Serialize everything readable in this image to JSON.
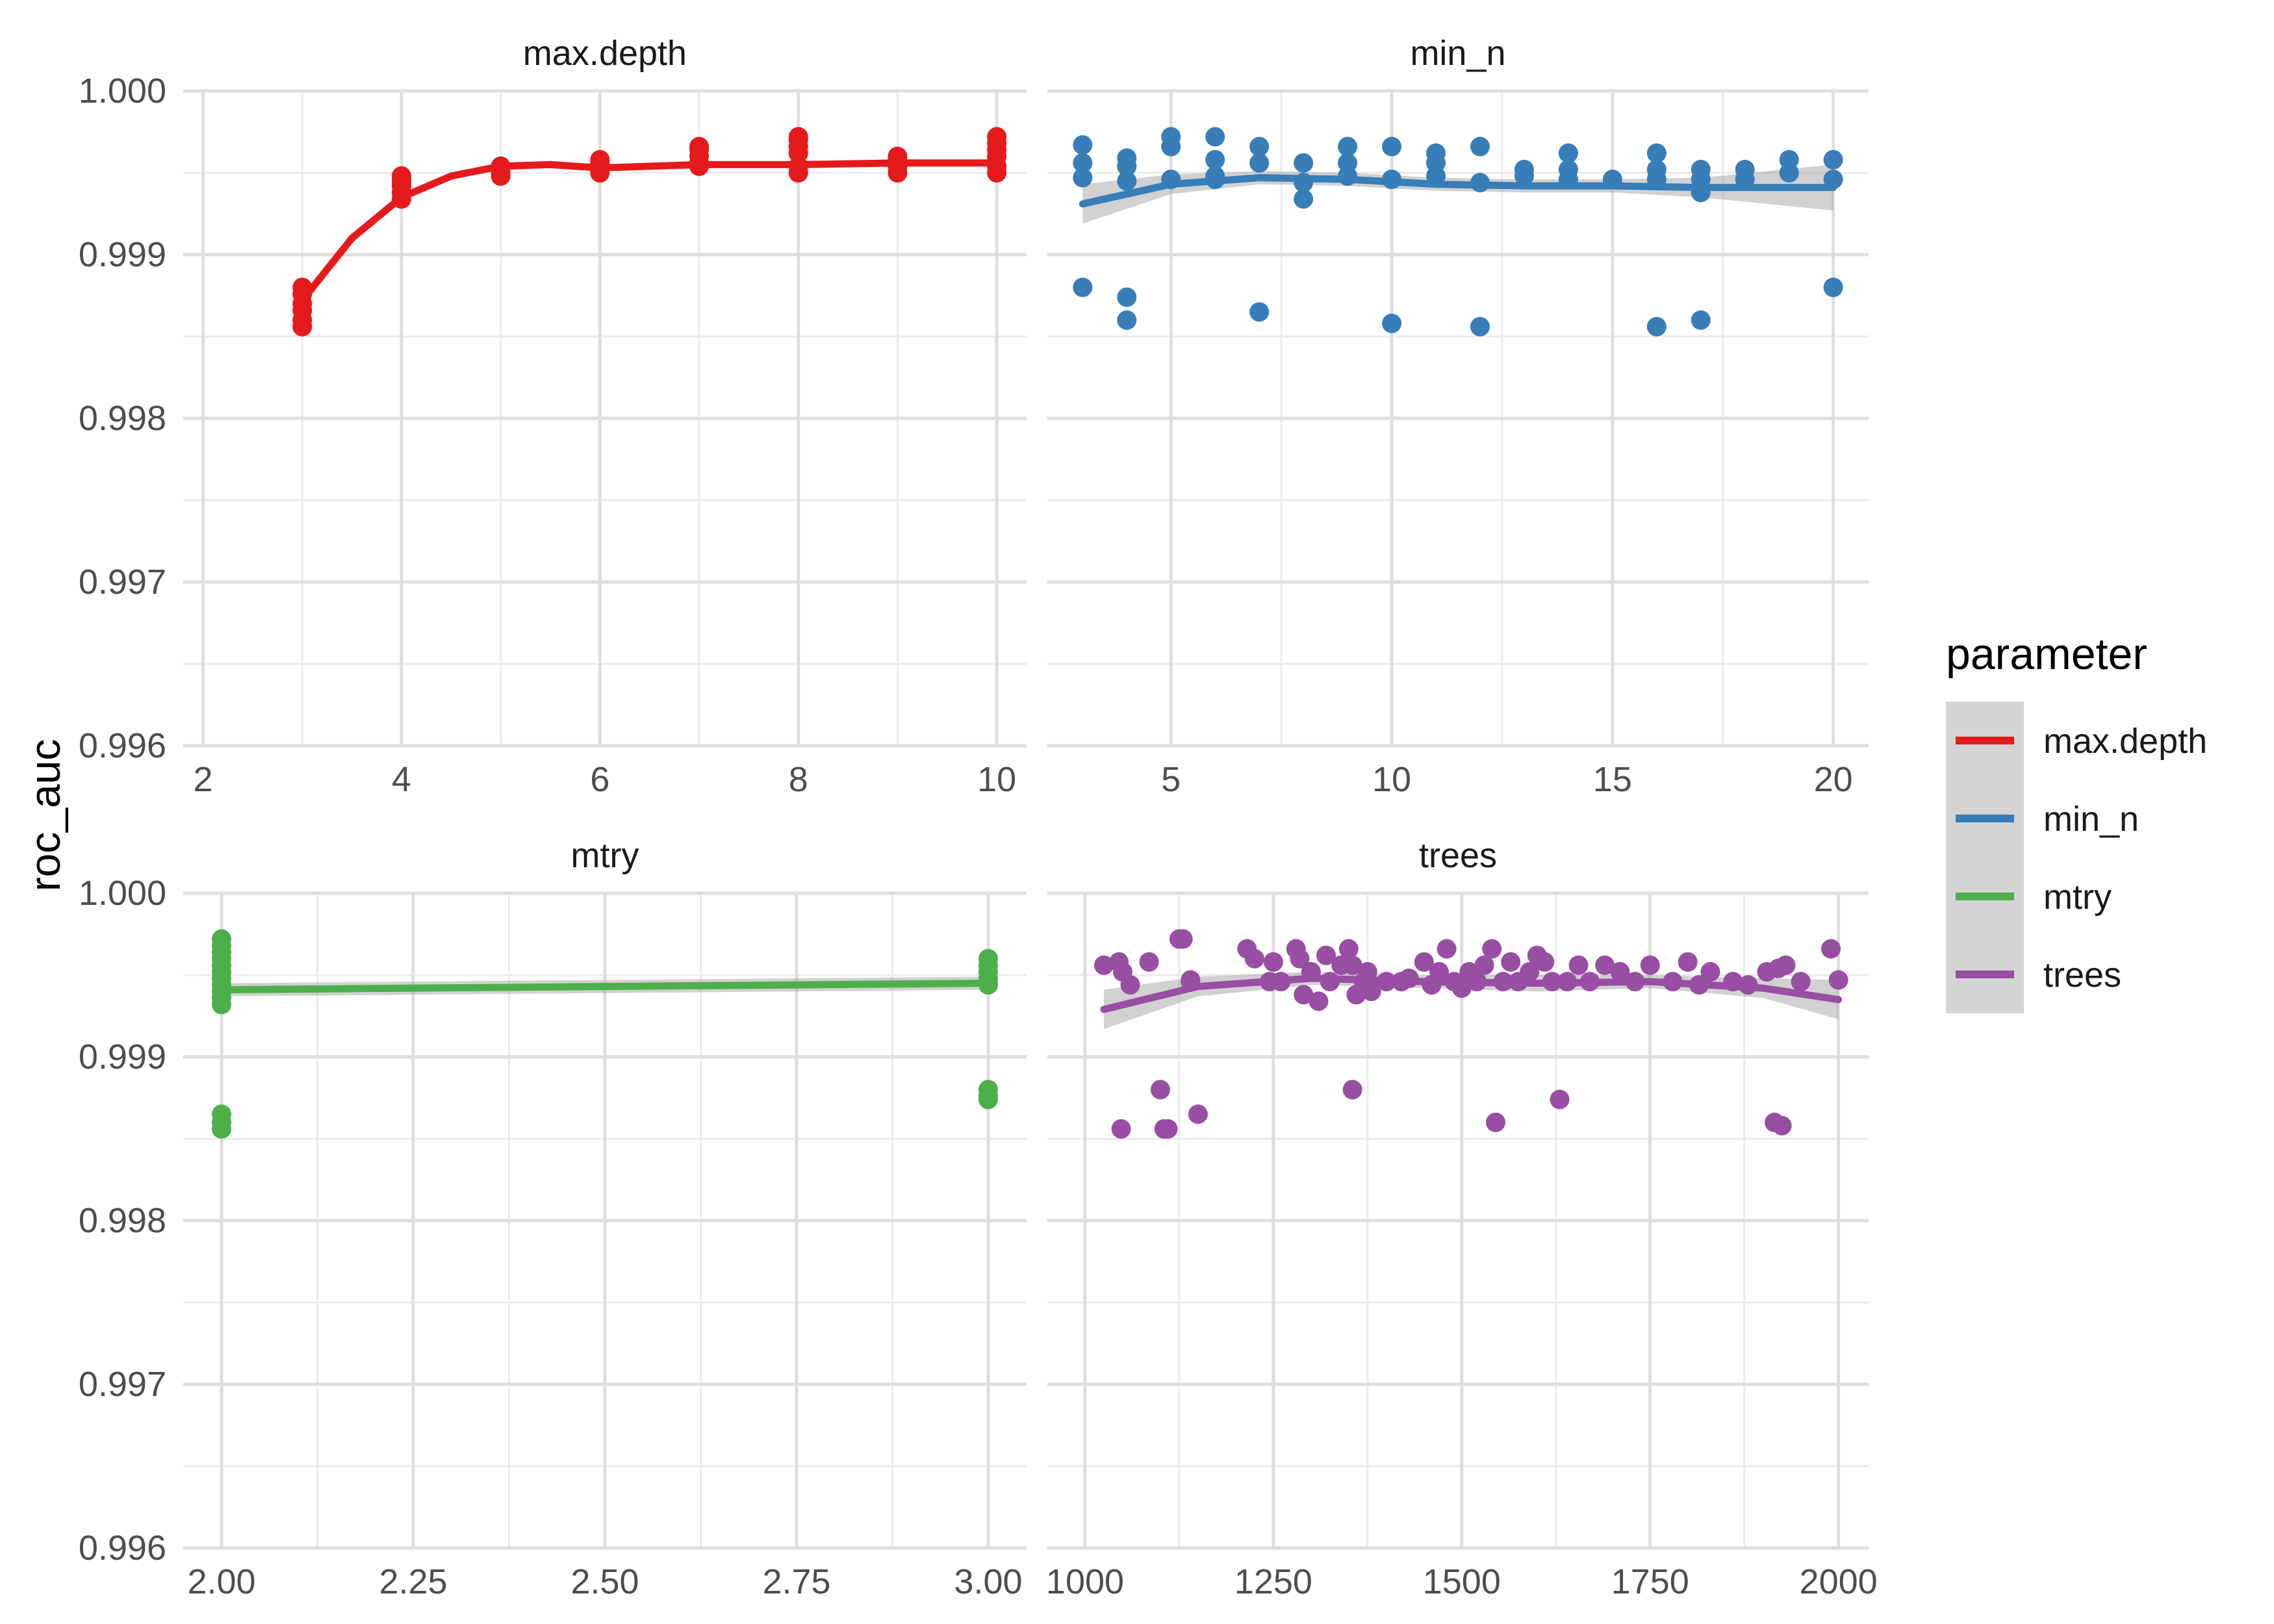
{
  "chart_data": {
    "type": "scatter",
    "ylabel": "roc_auc",
    "ylim": [
      0.996,
      1.0
    ],
    "yticks": [
      "0.996",
      "0.997",
      "0.998",
      "0.999",
      "1.000"
    ],
    "legend": {
      "title": "parameter",
      "position": "right",
      "entries": [
        {
          "name": "max.depth",
          "color": "#E41A1C"
        },
        {
          "name": "min_n",
          "color": "#377EB8"
        },
        {
          "name": "mtry",
          "color": "#4DAF4A"
        },
        {
          "name": "trees",
          "color": "#984EA3"
        }
      ]
    },
    "smoother": "loess with grey confidence band",
    "panels": [
      {
        "title": "max.depth",
        "color": "#E41A1C",
        "xlim": [
          1.8,
          10.3
        ],
        "xticks": [
          "2",
          "4",
          "6",
          "8",
          "10"
        ],
        "xtick_values": [
          2,
          4,
          6,
          8,
          10
        ],
        "x": [
          3,
          3,
          3,
          3,
          3,
          3,
          4,
          4,
          4,
          4,
          4,
          4,
          5,
          5,
          5,
          5,
          6,
          6,
          6,
          6,
          6,
          7,
          7,
          7,
          7,
          7,
          8,
          8,
          8,
          8,
          8,
          8,
          9,
          9,
          9,
          9,
          10,
          10,
          10,
          10,
          10,
          10
        ],
        "y": [
          0.99856,
          0.9986,
          0.99866,
          0.9987,
          0.99876,
          0.9988,
          0.99934,
          0.99938,
          0.99942,
          0.99944,
          0.99946,
          0.99948,
          0.99948,
          0.9995,
          0.99952,
          0.99954,
          0.9995,
          0.99952,
          0.99954,
          0.99956,
          0.99958,
          0.99954,
          0.99956,
          0.9996,
          0.99964,
          0.99966,
          0.9995,
          0.99954,
          0.99962,
          0.99966,
          0.9997,
          0.99972,
          0.9995,
          0.99954,
          0.99958,
          0.9996,
          0.9995,
          0.99954,
          0.9996,
          0.99964,
          0.99968,
          0.99972
        ],
        "smooth_x": [
          3,
          3.5,
          4,
          4.5,
          5,
          5.5,
          6,
          7,
          8,
          9,
          10
        ],
        "smooth_y": [
          0.99872,
          0.9991,
          0.99935,
          0.99948,
          0.99954,
          0.99955,
          0.99953,
          0.99955,
          0.99955,
          0.99956,
          0.99956
        ]
      },
      {
        "title": "min_n",
        "color": "#377EB8",
        "xlim": [
          2.2,
          20.8
        ],
        "xticks": [
          "5",
          "10",
          "15",
          "20"
        ],
        "xtick_values": [
          5,
          10,
          15,
          20
        ],
        "x": [
          3,
          3,
          3,
          3,
          4,
          4,
          4,
          4,
          4,
          5,
          5,
          5,
          6,
          6,
          6,
          6,
          7,
          7,
          7,
          8,
          8,
          8,
          9,
          9,
          9,
          10,
          10,
          10,
          11,
          11,
          11,
          12,
          12,
          12,
          13,
          13,
          14,
          14,
          14,
          15,
          16,
          16,
          16,
          16,
          17,
          17,
          17,
          17,
          18,
          18,
          19,
          19,
          20,
          20,
          20
        ],
        "y": [
          0.99967,
          0.99956,
          0.99947,
          0.9988,
          0.99959,
          0.99954,
          0.99945,
          0.99874,
          0.9986,
          0.99972,
          0.99966,
          0.99946,
          0.99972,
          0.99958,
          0.99948,
          0.99946,
          0.99966,
          0.99956,
          0.99865,
          0.99956,
          0.99944,
          0.99934,
          0.99966,
          0.99956,
          0.99948,
          0.99966,
          0.99946,
          0.99858,
          0.99962,
          0.99956,
          0.99948,
          0.99966,
          0.99944,
          0.99856,
          0.99952,
          0.99948,
          0.99962,
          0.99952,
          0.99946,
          0.99946,
          0.99962,
          0.99952,
          0.99946,
          0.99856,
          0.99952,
          0.99946,
          0.99938,
          0.9986,
          0.99952,
          0.99946,
          0.99958,
          0.9995,
          0.99958,
          0.99946,
          0.9988
        ],
        "smooth_x": [
          3,
          5,
          7,
          9,
          11,
          13,
          15,
          17,
          20
        ],
        "smooth_y": [
          0.99931,
          0.99943,
          0.99947,
          0.99946,
          0.99943,
          0.99942,
          0.99942,
          0.99941,
          0.99941
        ],
        "band_halfwidth": [
          0.00012,
          6e-05,
          4e-05,
          4e-05,
          4e-05,
          4e-05,
          4e-05,
          6e-05,
          0.00014
        ]
      },
      {
        "title": "mtry",
        "color": "#4DAF4A",
        "xlim": [
          1.95,
          3.05
        ],
        "xticks": [
          "2.00",
          "2.25",
          "2.50",
          "2.75",
          "3.00"
        ],
        "xtick_values": [
          2.0,
          2.25,
          2.5,
          2.75,
          3.0
        ],
        "x": [
          2,
          2,
          2,
          2,
          2,
          2,
          2,
          2,
          2,
          2,
          2,
          2,
          2,
          2,
          3,
          3,
          3,
          3,
          3,
          3,
          3,
          3,
          3
        ],
        "y": [
          0.99972,
          0.99968,
          0.99964,
          0.9996,
          0.99956,
          0.99952,
          0.99948,
          0.99944,
          0.9994,
          0.99936,
          0.99932,
          0.99865,
          0.9986,
          0.99856,
          0.9996,
          0.99956,
          0.99952,
          0.99948,
          0.99944,
          0.9988,
          0.99876,
          0.99874,
          0.99945
        ],
        "smooth_x": [
          2,
          3
        ],
        "smooth_y": [
          0.99941,
          0.99945
        ],
        "band_halfwidth": [
          4e-05,
          4e-05
        ]
      },
      {
        "title": "trees",
        "color": "#984EA3",
        "xlim": [
          950,
          2040
        ],
        "xticks": [
          "1000",
          "1250",
          "1500",
          "1750",
          "2000"
        ],
        "xtick_values": [
          1000,
          1250,
          1500,
          1750,
          2000
        ],
        "x": [
          1025,
          1045,
          1050,
          1048,
          1060,
          1085,
          1100,
          1110,
          1125,
          1130,
          1140,
          1150,
          1105,
          1140,
          1215,
          1225,
          1245,
          1250,
          1260,
          1280,
          1285,
          1290,
          1300,
          1310,
          1320,
          1325,
          1340,
          1350,
          1355,
          1360,
          1370,
          1375,
          1380,
          1355,
          1400,
          1420,
          1430,
          1450,
          1460,
          1470,
          1480,
          1490,
          1500,
          1510,
          1520,
          1530,
          1540,
          1545,
          1555,
          1565,
          1575,
          1590,
          1600,
          1610,
          1620,
          1630,
          1640,
          1655,
          1670,
          1690,
          1710,
          1730,
          1750,
          1780,
          1800,
          1815,
          1830,
          1860,
          1880,
          1905,
          1920,
          1930,
          1950,
          1990,
          2000,
          1915,
          1925
        ],
        "y": [
          0.99956,
          0.99958,
          0.99952,
          0.99856,
          0.99944,
          0.99958,
          0.9988,
          0.99856,
          0.99972,
          0.99972,
          0.99946,
          0.99865,
          0.99856,
          0.99947,
          0.99966,
          0.9996,
          0.99946,
          0.99958,
          0.99946,
          0.99966,
          0.9996,
          0.99938,
          0.99952,
          0.99934,
          0.99962,
          0.99946,
          0.99956,
          0.99966,
          0.9988,
          0.99938,
          0.99946,
          0.99952,
          0.9994,
          0.99956,
          0.99946,
          0.99946,
          0.99948,
          0.99958,
          0.99944,
          0.99952,
          0.99966,
          0.99946,
          0.99942,
          0.99952,
          0.99946,
          0.99956,
          0.99966,
          0.9986,
          0.99946,
          0.99958,
          0.99946,
          0.99952,
          0.99962,
          0.99958,
          0.99946,
          0.99874,
          0.99946,
          0.99956,
          0.99946,
          0.99956,
          0.99952,
          0.99946,
          0.99956,
          0.99946,
          0.99958,
          0.99944,
          0.99952,
          0.99946,
          0.99944,
          0.99952,
          0.99954,
          0.99956,
          0.99946,
          0.99966,
          0.99947,
          0.9986,
          0.99858
        ],
        "smooth_x": [
          1025,
          1150,
          1300,
          1450,
          1600,
          1750,
          1900,
          2000
        ],
        "smooth_y": [
          0.99929,
          0.99943,
          0.99948,
          0.99946,
          0.99945,
          0.99946,
          0.99942,
          0.99935
        ],
        "band_halfwidth": [
          0.00012,
          6e-05,
          4e-05,
          4e-05,
          5e-05,
          4e-05,
          6e-05,
          0.00012
        ]
      }
    ]
  }
}
